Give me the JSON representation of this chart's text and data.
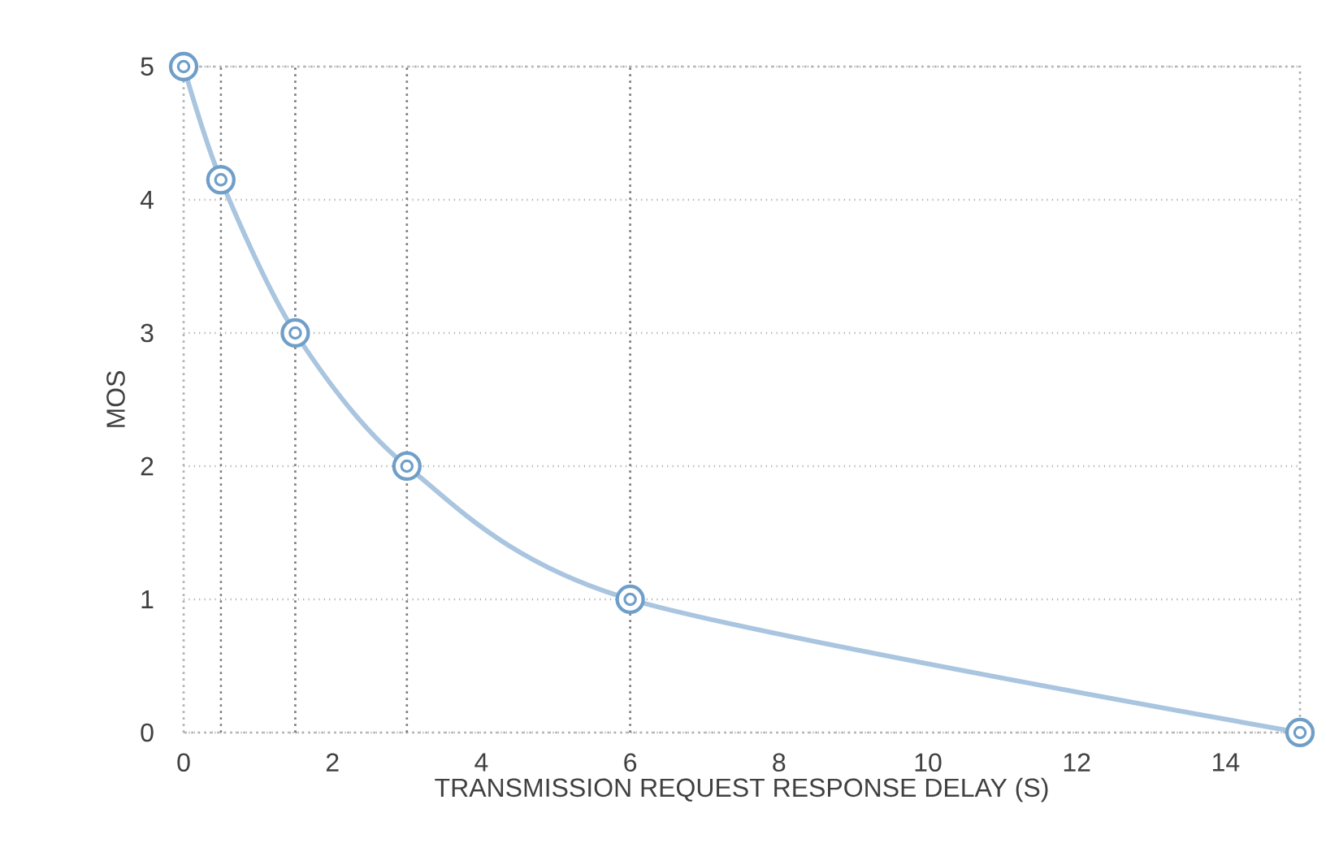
{
  "chart_data": {
    "type": "line",
    "xlabel": "TRANSMISSION REQUEST RESPONSE DELAY (S)",
    "ylabel": "MOS",
    "x": [
      0,
      0.5,
      1.5,
      3,
      6,
      15
    ],
    "values": [
      5,
      4.15,
      3,
      2,
      1,
      0
    ],
    "color": "#6f9fc9",
    "marker": "circle",
    "xlim": [
      0,
      15
    ],
    "ylim": [
      0,
      5
    ],
    "xticks": [
      0,
      2,
      4,
      6,
      8,
      10,
      12,
      14
    ],
    "yticks": [
      0,
      1,
      2,
      3,
      4,
      5
    ],
    "grid": "y",
    "ref_lines": [
      {
        "axis": "x",
        "value": 0.5,
        "color": "#7f7f7f",
        "line_style": "dotted"
      },
      {
        "axis": "x",
        "value": 1.5,
        "color": "#7f7f7f",
        "line_style": "dotted"
      },
      {
        "axis": "x",
        "value": 3,
        "color": "#7f7f7f",
        "line_style": "dotted"
      },
      {
        "axis": "x",
        "value": 6,
        "color": "#7f7f7f",
        "line_style": "dotted"
      }
    ]
  }
}
